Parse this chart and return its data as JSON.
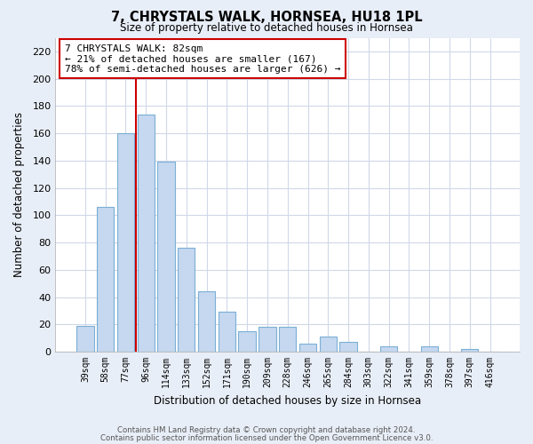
{
  "title": "7, CHRYSTALS WALK, HORNSEA, HU18 1PL",
  "subtitle": "Size of property relative to detached houses in Hornsea",
  "xlabel": "Distribution of detached houses by size in Hornsea",
  "ylabel": "Number of detached properties",
  "categories": [
    "39sqm",
    "58sqm",
    "77sqm",
    "96sqm",
    "114sqm",
    "133sqm",
    "152sqm",
    "171sqm",
    "190sqm",
    "209sqm",
    "228sqm",
    "246sqm",
    "265sqm",
    "284sqm",
    "303sqm",
    "322sqm",
    "341sqm",
    "359sqm",
    "378sqm",
    "397sqm",
    "416sqm"
  ],
  "values": [
    19,
    106,
    160,
    174,
    139,
    76,
    44,
    29,
    15,
    18,
    18,
    6,
    11,
    7,
    0,
    4,
    0,
    4,
    0,
    2,
    0
  ],
  "bar_color": "#c5d8f0",
  "bar_edge_color": "#7bafd4",
  "vline_color": "#cc0000",
  "annotation_text": "7 CHRYSTALS WALK: 82sqm\n← 21% of detached houses are smaller (167)\n78% of semi-detached houses are larger (626) →",
  "annotation_box_color": "#ffffff",
  "annotation_box_edge": "#cc0000",
  "ylim": [
    0,
    230
  ],
  "yticks": [
    0,
    20,
    40,
    60,
    80,
    100,
    120,
    140,
    160,
    180,
    200,
    220
  ],
  "footer1": "Contains HM Land Registry data © Crown copyright and database right 2024.",
  "footer2": "Contains public sector information licensed under the Open Government Licence v3.0.",
  "fig_bg_color": "#e8eef7",
  "plot_bg_color": "#ffffff",
  "grid_color": "#d0d8e8"
}
